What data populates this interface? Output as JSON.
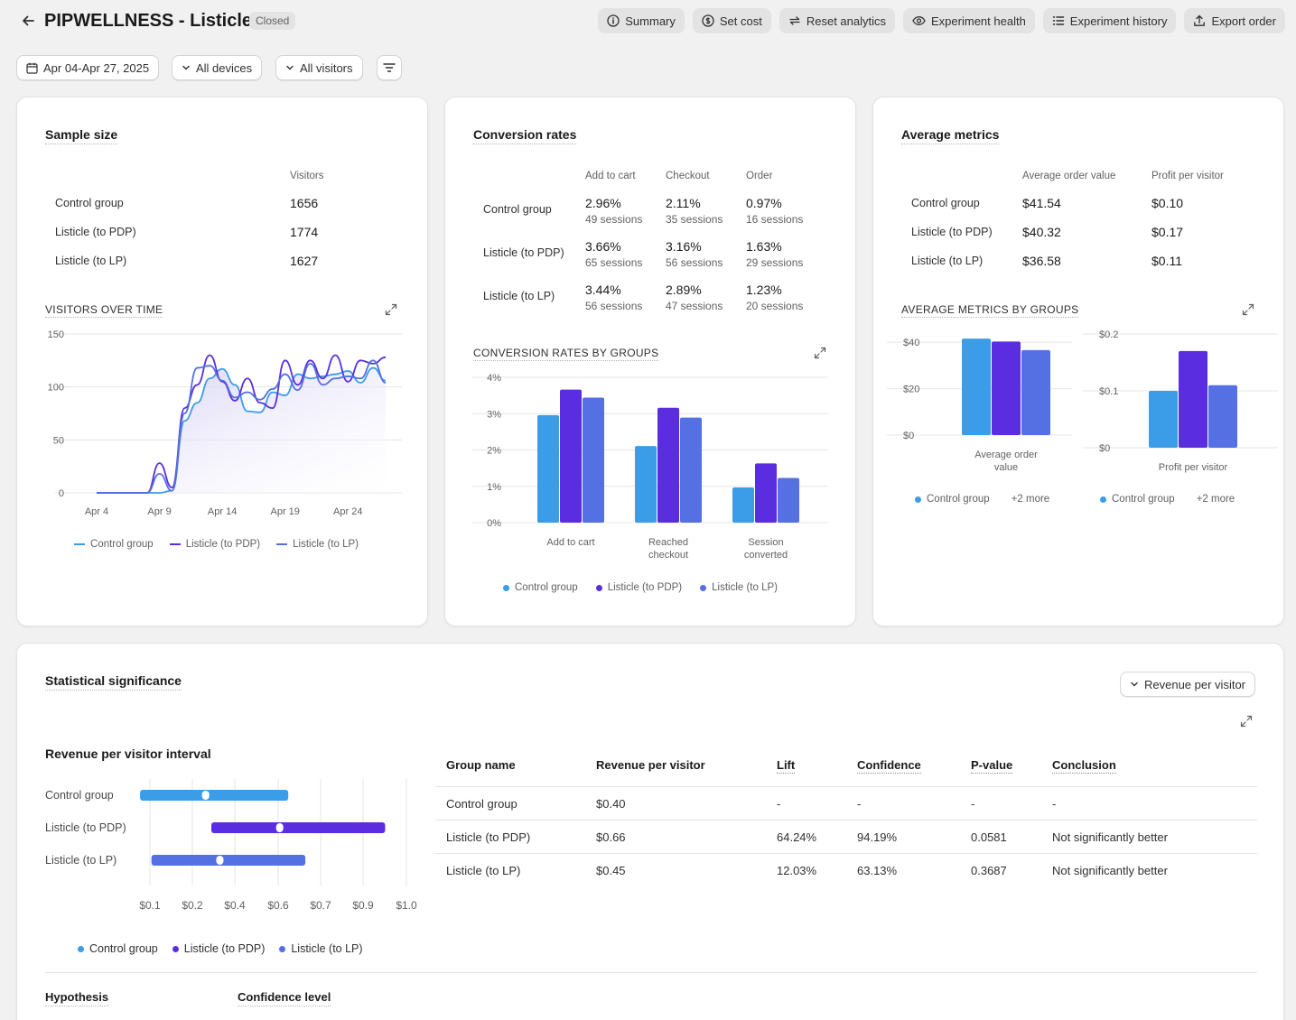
{
  "header": {
    "title": "PIPWELLNESS - Listicle",
    "status": "Closed",
    "actions": [
      {
        "label": "Summary",
        "icon": "info-icon"
      },
      {
        "label": "Set cost",
        "icon": "dollar-icon"
      },
      {
        "label": "Reset analytics",
        "icon": "refresh-icon"
      },
      {
        "label": "Experiment health",
        "icon": "eye-icon"
      },
      {
        "label": "Experiment history",
        "icon": "list-icon"
      },
      {
        "label": "Export order",
        "icon": "upload-icon"
      }
    ]
  },
  "filters": {
    "date_range": "Apr 04-Apr 27, 2025",
    "devices": "All devices",
    "visitors": "All visitors"
  },
  "colors": {
    "control": "#3b9de8",
    "pdp": "#5a2ee0",
    "lp": "#5470e2"
  },
  "sample_size": {
    "title": "Sample size",
    "column": "Visitors",
    "rows": [
      {
        "group": "Control group",
        "visitors": "1656"
      },
      {
        "group": "Listicle (to PDP)",
        "visitors": "1774"
      },
      {
        "group": "Listicle (to LP)",
        "visitors": "1627"
      }
    ],
    "chart_title": "VISITORS OVER TIME",
    "legend": [
      "Control group",
      "Listicle (to PDP)",
      "Listicle (to LP)"
    ]
  },
  "conversion": {
    "title": "Conversion rates",
    "columns": [
      "Add to cart",
      "Checkout",
      "Order"
    ],
    "rows": [
      {
        "group": "Control group",
        "cells": [
          {
            "rate": "2.96%",
            "sessions": "49 sessions"
          },
          {
            "rate": "2.11%",
            "sessions": "35 sessions"
          },
          {
            "rate": "0.97%",
            "sessions": "16 sessions"
          }
        ]
      },
      {
        "group": "Listicle (to PDP)",
        "cells": [
          {
            "rate": "3.66%",
            "sessions": "65 sessions"
          },
          {
            "rate": "3.16%",
            "sessions": "56 sessions"
          },
          {
            "rate": "1.63%",
            "sessions": "29 sessions"
          }
        ]
      },
      {
        "group": "Listicle (to LP)",
        "cells": [
          {
            "rate": "3.44%",
            "sessions": "56 sessions"
          },
          {
            "rate": "2.89%",
            "sessions": "47 sessions"
          },
          {
            "rate": "1.23%",
            "sessions": "20 sessions"
          }
        ]
      }
    ],
    "chart_title": "CONVERSION RATES BY GROUPS",
    "legend": [
      "Control group",
      "Listicle (to PDP)",
      "Listicle (to LP)"
    ]
  },
  "average": {
    "title": "Average metrics",
    "columns": [
      "Average order value",
      "Profit per visitor"
    ],
    "rows": [
      {
        "group": "Control group",
        "aov": "$41.54",
        "ppv": "$0.10"
      },
      {
        "group": "Listicle (to PDP)",
        "aov": "$40.32",
        "ppv": "$0.17"
      },
      {
        "group": "Listicle (to LP)",
        "aov": "$36.58",
        "ppv": "$0.11"
      }
    ],
    "chart_title": "AVERAGE METRICS BY GROUPS",
    "legend_group": "Control group",
    "legend_more": "+2 more"
  },
  "significance": {
    "title": "Statistical significance",
    "metric_select": "Revenue per visitor",
    "interval_title": "Revenue per visitor interval",
    "legend": [
      "Control group",
      "Listicle (to PDP)",
      "Listicle (to LP)"
    ],
    "table": {
      "headers": [
        "Group name",
        "Revenue per visitor",
        "Lift",
        "Confidence",
        "P-value",
        "Conclusion"
      ],
      "rows": [
        [
          "Control group",
          "$0.40",
          "-",
          "-",
          "-",
          "-"
        ],
        [
          "Listicle (to PDP)",
          "$0.66",
          "64.24%",
          "94.19%",
          "0.0581",
          "Not significantly better"
        ],
        [
          "Listicle (to LP)",
          "$0.45",
          "12.03%",
          "63.13%",
          "0.3687",
          "Not significantly better"
        ]
      ]
    },
    "hypothesis_label": "Hypothesis",
    "confidence_label": "Confidence level"
  },
  "chart_data": [
    {
      "type": "line",
      "title": "VISITORS OVER TIME",
      "x_ticks": [
        "Apr 4",
        "Apr 9",
        "Apr 14",
        "Apr 19",
        "Apr 24"
      ],
      "y_ticks": [
        0,
        50,
        100,
        150
      ],
      "ylim": [
        0,
        150
      ],
      "x": [
        "Apr 4",
        "Apr 5",
        "Apr 6",
        "Apr 7",
        "Apr 8",
        "Apr 9",
        "Apr 10",
        "Apr 11",
        "Apr 12",
        "Apr 13",
        "Apr 14",
        "Apr 15",
        "Apr 16",
        "Apr 17",
        "Apr 18",
        "Apr 19",
        "Apr 20",
        "Apr 21",
        "Apr 22",
        "Apr 23",
        "Apr 24",
        "Apr 25",
        "Apr 26",
        "Apr 27"
      ],
      "series": [
        {
          "name": "Control group",
          "values": [
            0,
            0,
            0,
            0,
            0,
            0,
            2,
            68,
            85,
            108,
            117,
            102,
            77,
            76,
            95,
            92,
            112,
            108,
            110,
            112,
            115,
            104,
            118,
            106
          ]
        },
        {
          "name": "Listicle (to PDP)",
          "values": [
            0,
            0,
            0,
            0,
            0,
            28,
            5,
            80,
            102,
            130,
            105,
            87,
            108,
            85,
            80,
            125,
            102,
            125,
            108,
            130,
            105,
            125,
            122,
            128
          ]
        },
        {
          "name": "Listicle (to LP)",
          "values": [
            0,
            0,
            0,
            0,
            0,
            18,
            2,
            75,
            118,
            120,
            106,
            90,
            95,
            88,
            98,
            112,
            97,
            122,
            102,
            108,
            110,
            108,
            125,
            104
          ]
        }
      ]
    },
    {
      "type": "bar",
      "title": "CONVERSION RATES BY GROUPS",
      "categories": [
        "Add to cart",
        "Reached checkout",
        "Session converted"
      ],
      "y_ticks": [
        "0%",
        "1%",
        "2%",
        "3%",
        "4%"
      ],
      "ylim": [
        0,
        4
      ],
      "series": [
        {
          "name": "Control group",
          "values": [
            2.96,
            2.11,
            0.97
          ]
        },
        {
          "name": "Listicle (to PDP)",
          "values": [
            3.66,
            3.16,
            1.63
          ]
        },
        {
          "name": "Listicle (to LP)",
          "values": [
            3.44,
            2.89,
            1.23
          ]
        }
      ]
    },
    {
      "type": "bar",
      "title": "Average order value",
      "categories": [
        "Average order value"
      ],
      "y_ticks": [
        "$0",
        "$20",
        "$40"
      ],
      "ylim": [
        0,
        42
      ],
      "series": [
        {
          "name": "Control group",
          "values": [
            41.54
          ]
        },
        {
          "name": "Listicle (to PDP)",
          "values": [
            40.32
          ]
        },
        {
          "name": "Listicle (to LP)",
          "values": [
            36.58
          ]
        }
      ]
    },
    {
      "type": "bar",
      "title": "Profit per visitor",
      "categories": [
        "Profit per visitor"
      ],
      "y_ticks": [
        "$0",
        "$0.1",
        "$0.2"
      ],
      "ylim": [
        0,
        0.2
      ],
      "series": [
        {
          "name": "Control group",
          "values": [
            0.1
          ]
        },
        {
          "name": "Listicle (to PDP)",
          "values": [
            0.17
          ]
        },
        {
          "name": "Listicle (to LP)",
          "values": [
            0.11
          ]
        }
      ]
    },
    {
      "type": "interval",
      "title": "Revenue per visitor interval",
      "x_ticks": [
        "$0.1",
        "$0.2",
        "$0.4",
        "$0.6",
        "$0.7",
        "$0.9",
        "$1.0"
      ],
      "series": [
        {
          "name": "Control group",
          "low": 0.17,
          "high": 0.69,
          "point": 0.4
        },
        {
          "name": "Listicle (to PDP)",
          "low": 0.42,
          "high": 1.03,
          "point": 0.66
        },
        {
          "name": "Listicle (to LP)",
          "low": 0.21,
          "high": 0.75,
          "point": 0.45
        }
      ]
    }
  ]
}
